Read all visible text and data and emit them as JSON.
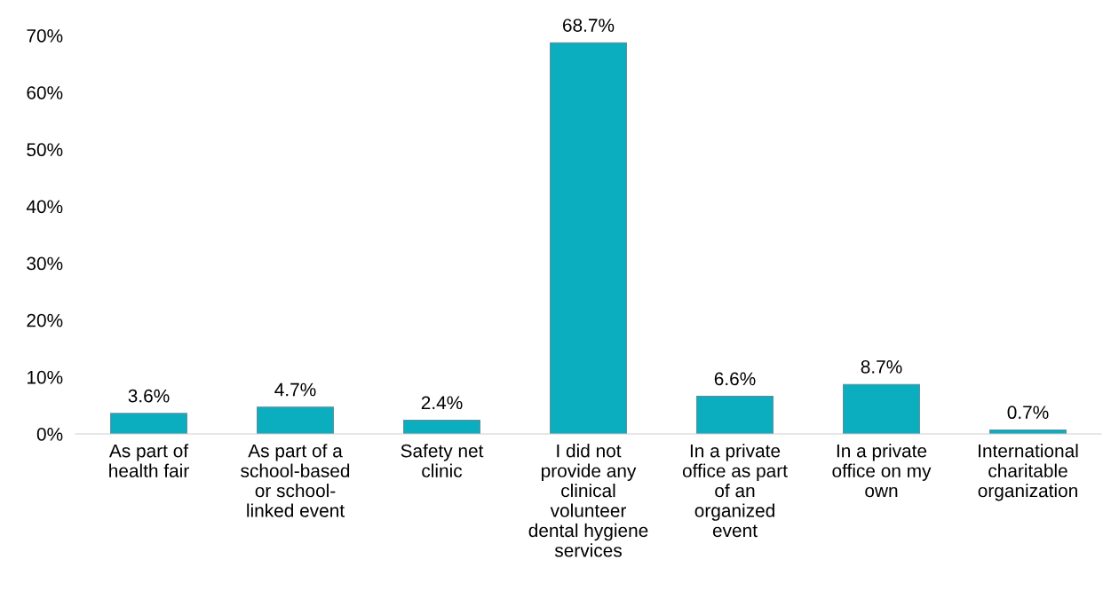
{
  "chart_data": {
    "type": "bar",
    "categories": [
      "As part of\nhealth fair",
      "As part of a\nschool-based\nor school-\nlinked event",
      "Safety net\nclinic",
      "I did not\nprovide any\nclinical\nvolunteer\ndental hygiene\nservices",
      "In a private\noffice as part\nof an\norganized\nevent",
      "In a private\noffice on my\nown",
      "International\ncharitable\norganization"
    ],
    "values": [
      3.6,
      4.7,
      2.4,
      68.7,
      6.6,
      8.7,
      0.7
    ],
    "value_labels": [
      "3.6%",
      "4.7%",
      "2.4%",
      "68.7%",
      "6.6%",
      "8.7%",
      "0.7%"
    ],
    "color": "#0aaebe",
    "ylim": [
      0,
      70
    ],
    "yticks": [
      {
        "value": 0,
        "label": "0%"
      },
      {
        "value": 10,
        "label": "10%"
      },
      {
        "value": 20,
        "label": "20%"
      },
      {
        "value": 30,
        "label": "30%"
      },
      {
        "value": 40,
        "label": "40%"
      },
      {
        "value": 50,
        "label": "50%"
      },
      {
        "value": 60,
        "label": "60%"
      },
      {
        "value": 70,
        "label": "70%"
      }
    ],
    "grid": false,
    "legend": false
  }
}
